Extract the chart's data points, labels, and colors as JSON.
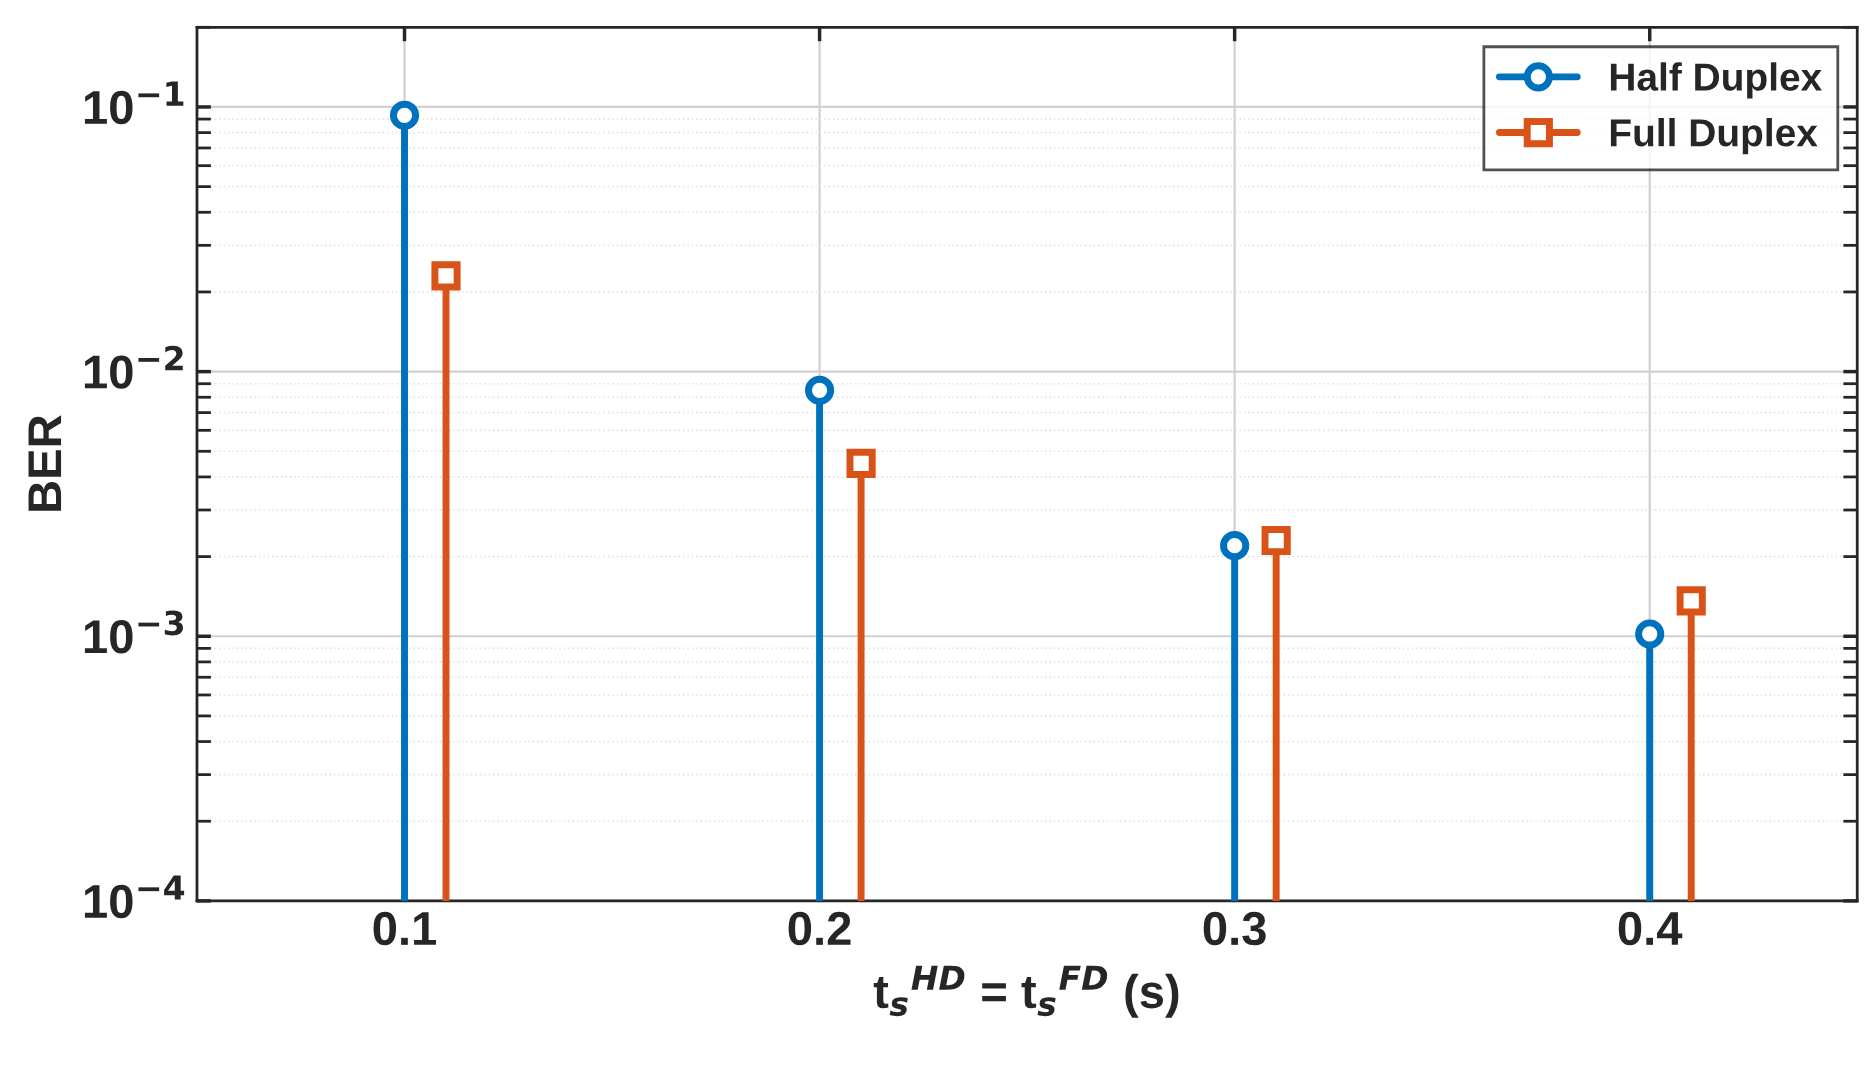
{
  "chart_data": {
    "type": "lollipop",
    "xlabel": "t$_{s}$$^{HD}$ = t$_{s}$$^{FD}$ (s)",
    "ylabel": "BER",
    "log": "y",
    "grid": true,
    "legend": "top right",
    "xlim": [
      0.05,
      0.45
    ],
    "xticks": [
      0.1,
      0.2,
      0.3,
      0.4
    ],
    "ylim": [
      0.0001,
      0.2
    ],
    "yticks": [
      {
        "value": 0.0001,
        "label": "10$^{−4}$"
      },
      {
        "value": 0.001,
        "label": "10$^{−3}$"
      },
      {
        "value": 0.01,
        "label": "10$^{−2}$"
      },
      {
        "value": 0.1,
        "label": "10$^{−1}$"
      }
    ],
    "series": [
      {
        "name": "Half Duplex",
        "color": "#0072bd",
        "marker": "circle",
        "x": [
          0.1,
          0.2,
          0.3,
          0.4
        ],
        "values": [
          0.093,
          0.0085,
          0.0022,
          0.00102
        ]
      },
      {
        "name": "Full Duplex",
        "color": "#d95319",
        "marker": "square",
        "x": [
          0.11,
          0.21,
          0.31,
          0.41
        ],
        "values": [
          0.023,
          0.0045,
          0.0023,
          0.00136
        ]
      }
    ]
  }
}
